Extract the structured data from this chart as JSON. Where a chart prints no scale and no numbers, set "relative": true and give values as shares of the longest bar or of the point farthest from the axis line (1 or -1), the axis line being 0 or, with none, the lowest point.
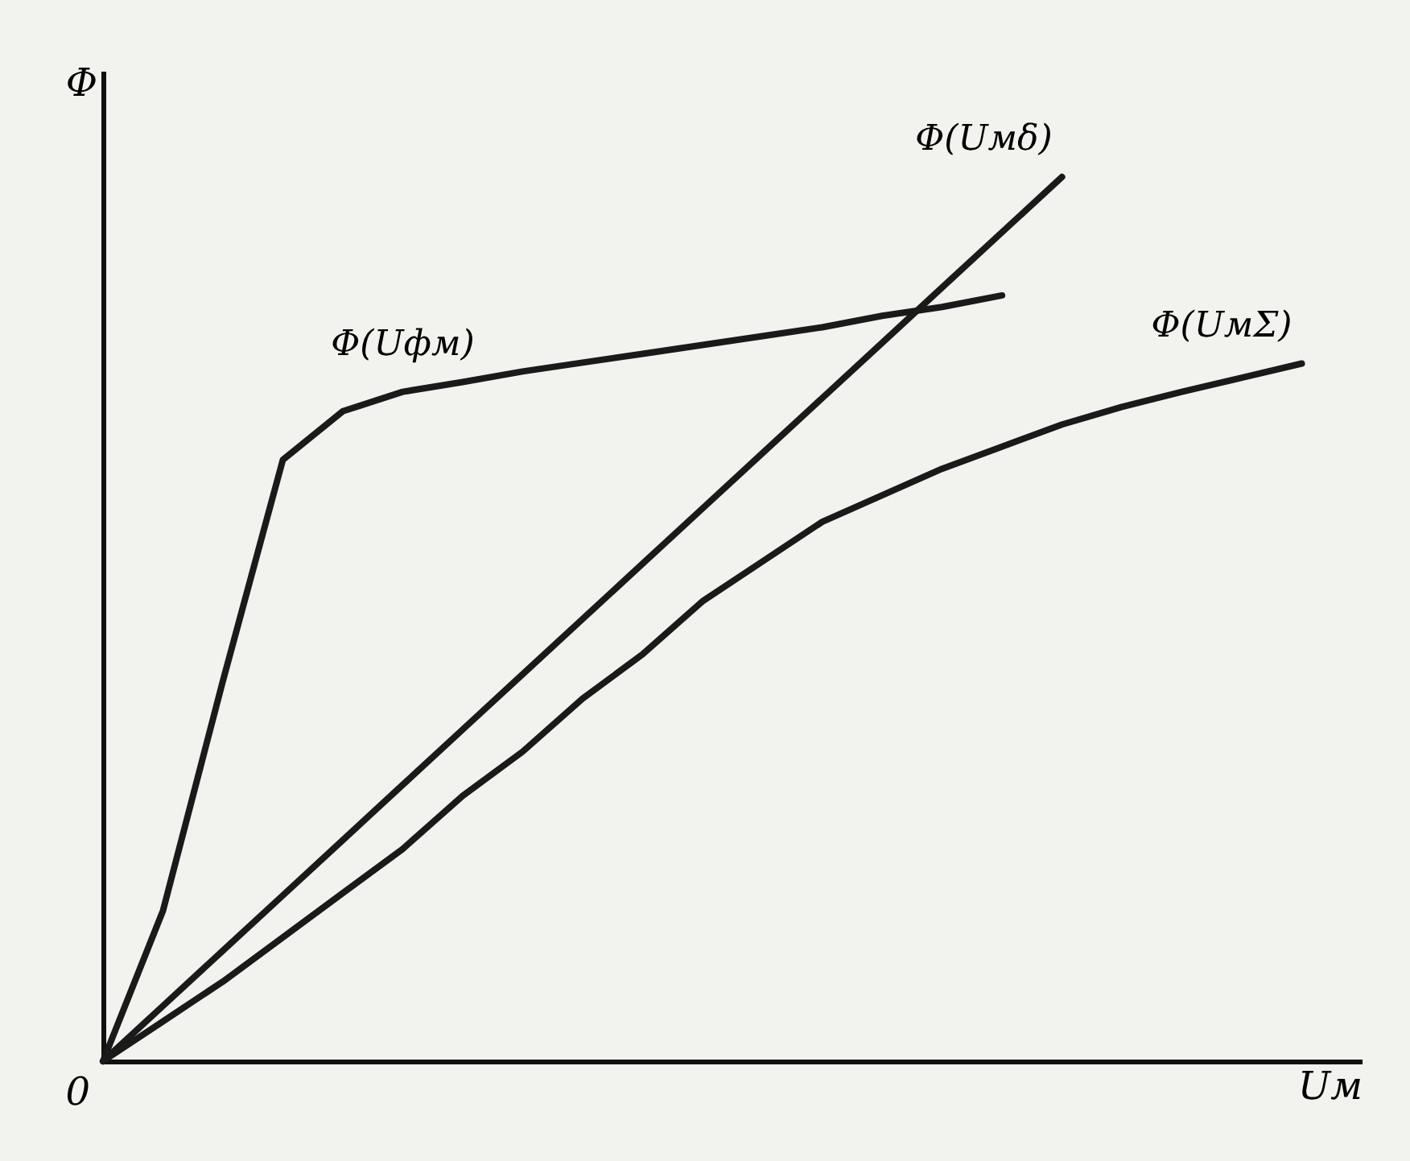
{
  "chart_data": {
    "type": "line",
    "relative": true,
    "xlabel": "Uм",
    "ylabel": "Φ",
    "tick_labels": false,
    "marker": "none",
    "line_style": "solid",
    "annotations": [
      "0"
    ],
    "categories": [
      null,
      null,
      null,
      null,
      null,
      null,
      null,
      null,
      null,
      null,
      null,
      null,
      null,
      null,
      null,
      null,
      null,
      null,
      null,
      null,
      null
    ],
    "series": [
      {
        "name": "Φ(Uфм)",
        "color": "#1a1a1a",
        "values": [
          0,
          0.17,
          0.43,
          0.68,
          0.735,
          0.757,
          0.768,
          0.78,
          0.79,
          0.8,
          0.81,
          0.82,
          0.83,
          0.843,
          0.853,
          0.866,
          null,
          null,
          null,
          null,
          null
        ]
      },
      {
        "name": "Φ(Uмδ)",
        "color": "#1a1a1a",
        "values": [
          0,
          0.0625,
          0.125,
          0.1875,
          0.25,
          0.3125,
          0.375,
          0.4375,
          0.5,
          0.5625,
          0.625,
          0.6875,
          0.75,
          0.8125,
          0.875,
          0.9375,
          1,
          null,
          null,
          null,
          null
        ]
      },
      {
        "name": "Φ(UмΣ)",
        "color": "#1a1a1a",
        "values": [
          0,
          0.045,
          0.09,
          0.14,
          0.19,
          0.24,
          0.3,
          0.35,
          0.41,
          0.46,
          0.52,
          0.565,
          0.61,
          0.64,
          0.67,
          0.695,
          0.72,
          0.74,
          0.757,
          0.773,
          0.789
        ]
      }
    ]
  }
}
